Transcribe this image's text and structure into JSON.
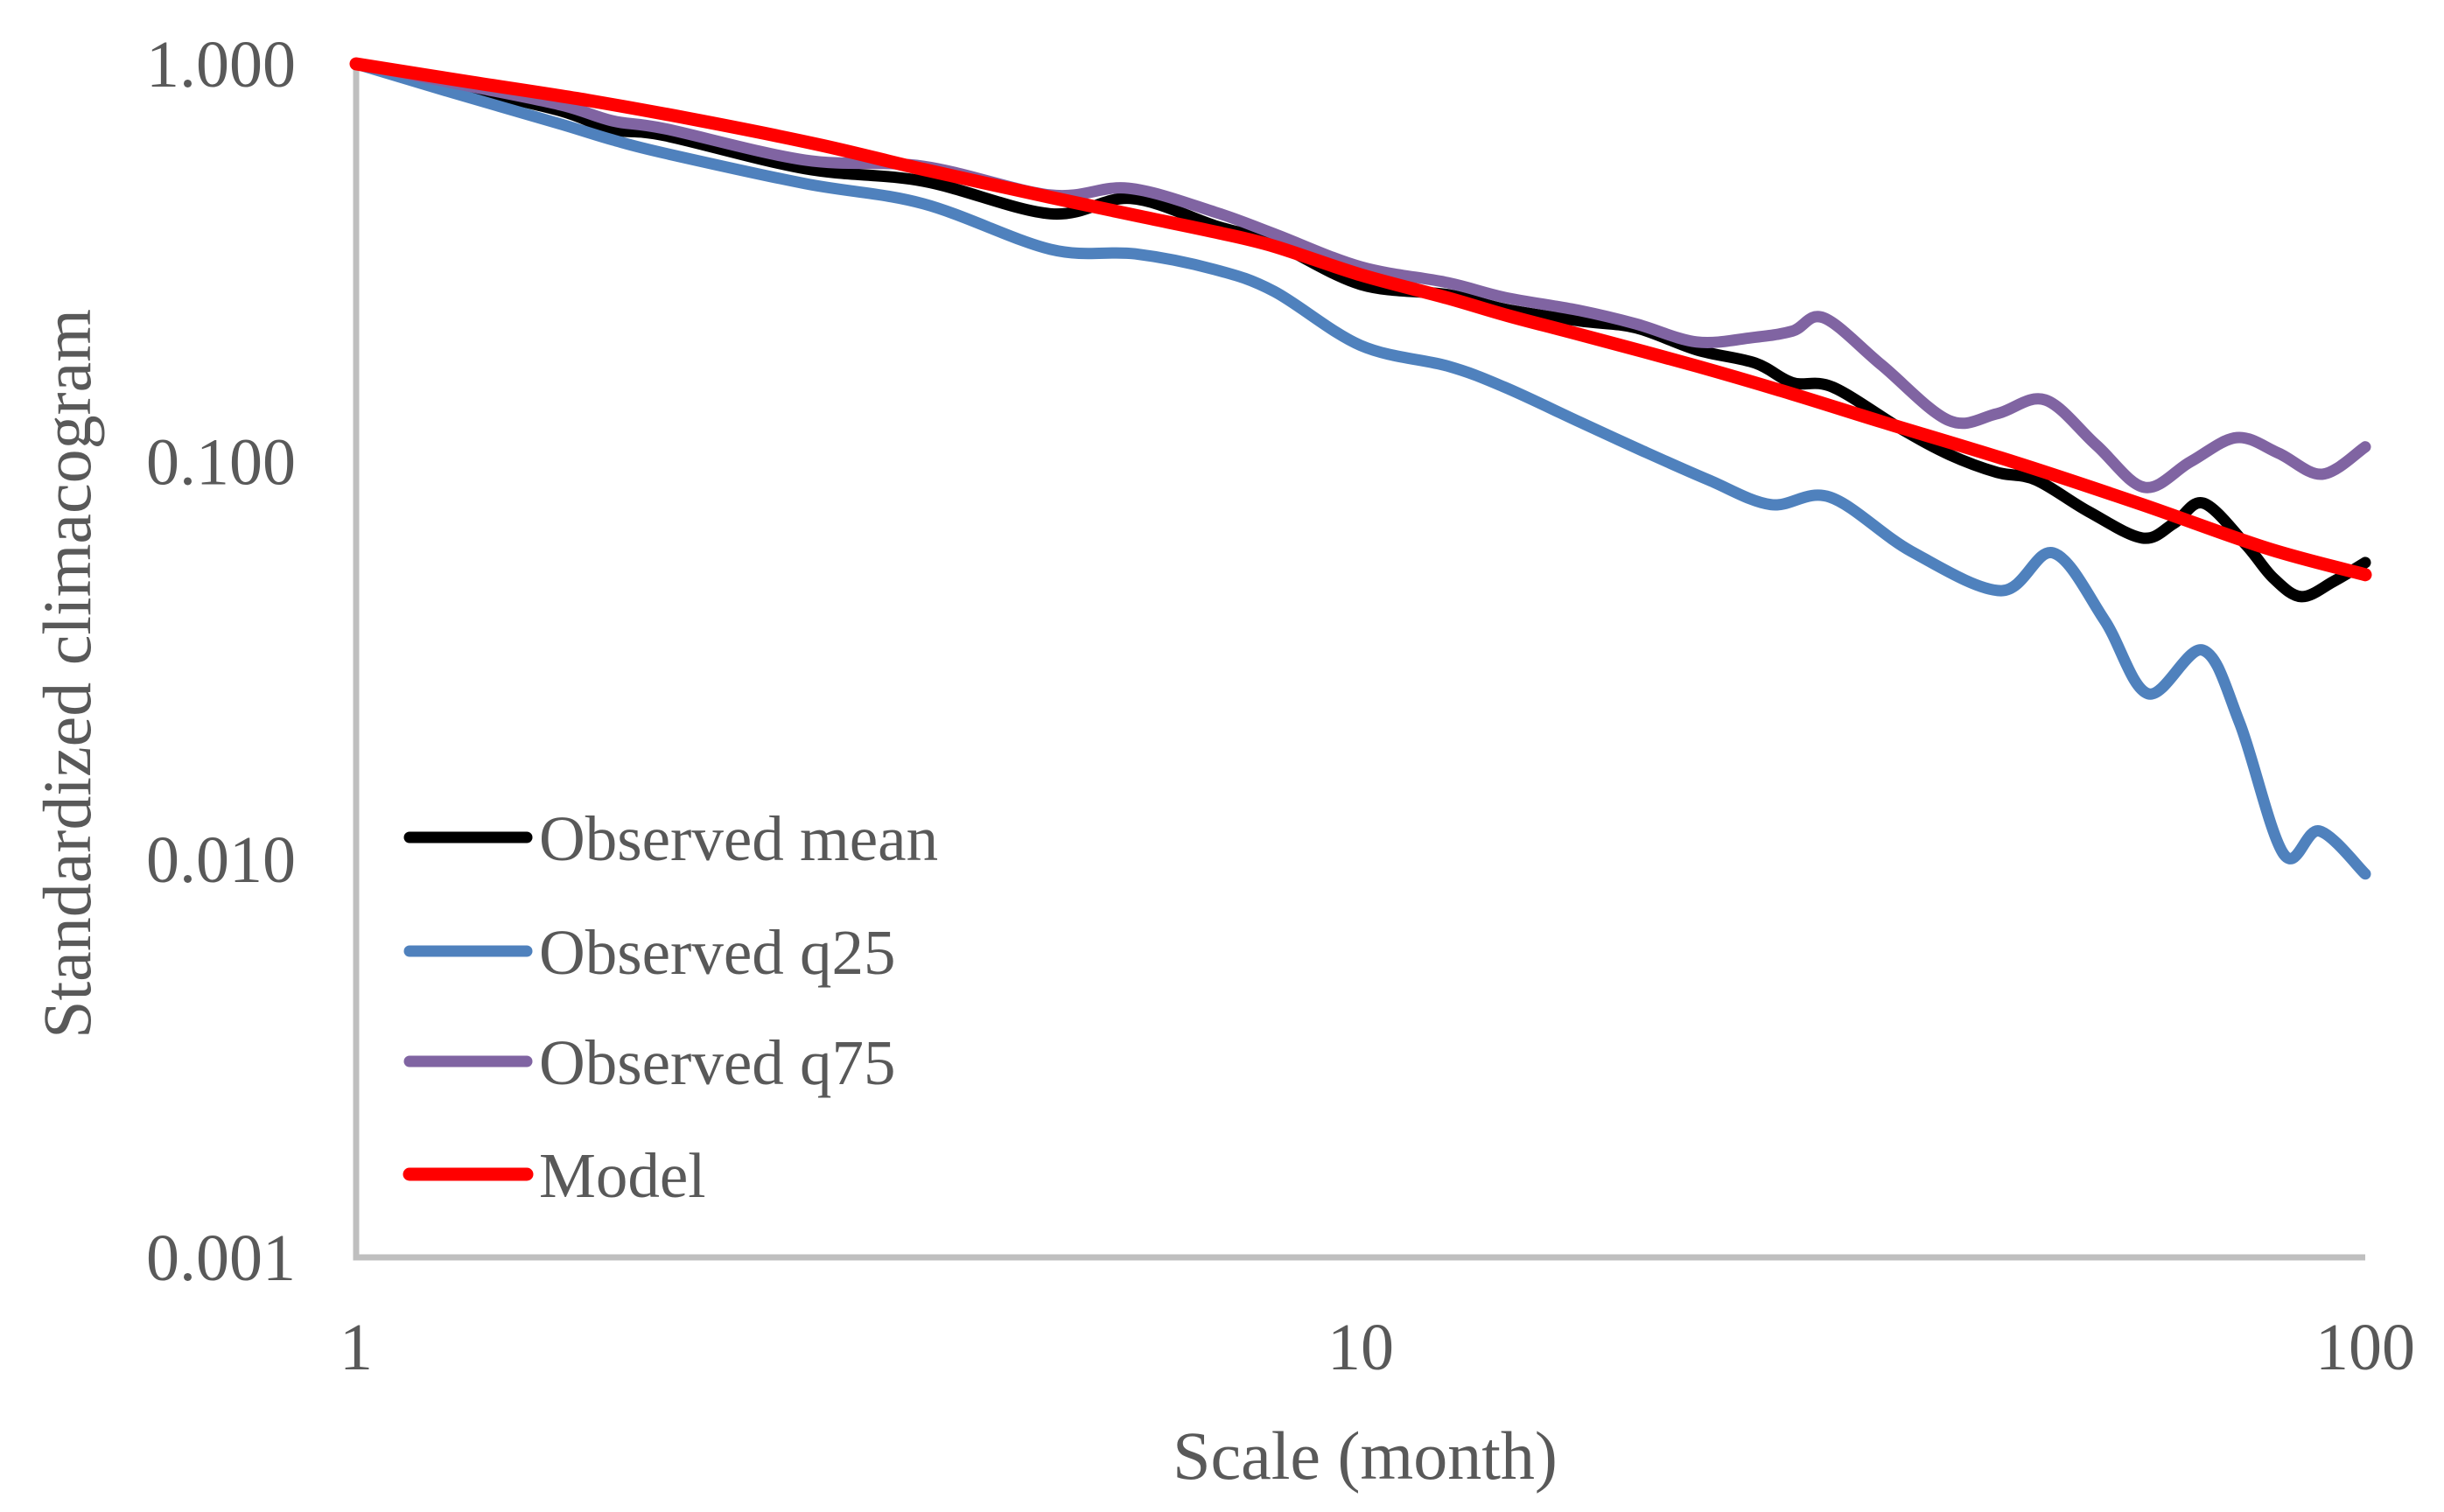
{
  "chart_data": {
    "type": "line",
    "title": "",
    "xlabel": "Scale (month)",
    "ylabel": "Standardized climacogram",
    "x_scale": "log",
    "y_scale": "log",
    "xlim": [
      1,
      100
    ],
    "ylim": [
      0.001,
      1.0
    ],
    "grid": false,
    "legend_position": "inside-lower-left",
    "x_ticks": [
      {
        "label": "1",
        "value": 1
      },
      {
        "label": "10",
        "value": 10
      },
      {
        "label": "100",
        "value": 100
      }
    ],
    "y_ticks": [
      {
        "label": "1.000",
        "value": 1.0
      },
      {
        "label": "0.100",
        "value": 0.1
      },
      {
        "label": "0.010",
        "value": 0.01
      },
      {
        "label": "0.001",
        "value": 0.001
      }
    ],
    "series": [
      {
        "id": "observed-mean",
        "name": "Observed mean",
        "color": "#000000",
        "points": [
          [
            1,
            1.0
          ],
          [
            1.3,
            0.862
          ],
          [
            1.6,
            0.761
          ],
          [
            1.8,
            0.684
          ],
          [
            2.03,
            0.66
          ],
          [
            2.8,
            0.545
          ],
          [
            3.67,
            0.507
          ],
          [
            4.91,
            0.42
          ],
          [
            5.9,
            0.459
          ],
          [
            7.16,
            0.392
          ],
          [
            8.2,
            0.354
          ],
          [
            10,
            0.279
          ],
          [
            12.2,
            0.263
          ],
          [
            13.9,
            0.242
          ],
          [
            16.5,
            0.226
          ],
          [
            18.8,
            0.217
          ],
          [
            21.6,
            0.191
          ],
          [
            24.7,
            0.177
          ],
          [
            26.9,
            0.158
          ],
          [
            29.5,
            0.154
          ],
          [
            34.5,
            0.121
          ],
          [
            38.6,
            0.104
          ],
          [
            43,
            0.094
          ],
          [
            47,
            0.09
          ],
          [
            53,
            0.075
          ],
          [
            60,
            0.0643
          ],
          [
            64.5,
            0.07
          ],
          [
            69,
            0.0787
          ],
          [
            76,
            0.062
          ],
          [
            81,
            0.051
          ],
          [
            86.4,
            0.0458
          ],
          [
            93,
            0.05
          ],
          [
            100,
            0.0558
          ]
        ]
      },
      {
        "id": "observed-q25",
        "name": "Observed q25",
        "color": "#4F81BD",
        "points": [
          [
            1,
            1.0
          ],
          [
            1.25,
            0.845
          ],
          [
            1.6,
            0.705
          ],
          [
            1.8,
            0.644
          ],
          [
            2.03,
            0.596
          ],
          [
            2.8,
            0.5
          ],
          [
            3.67,
            0.445
          ],
          [
            4.91,
            0.342
          ],
          [
            5.96,
            0.333
          ],
          [
            7.16,
            0.304
          ],
          [
            8.2,
            0.268
          ],
          [
            10,
            0.196
          ],
          [
            12.2,
            0.174
          ],
          [
            13.9,
            0.154
          ],
          [
            16.5,
            0.126
          ],
          [
            19,
            0.107
          ],
          [
            22.2,
            0.09
          ],
          [
            25.6,
            0.078
          ],
          [
            29.3,
            0.0815
          ],
          [
            35.3,
            0.0596
          ],
          [
            43.4,
            0.0474
          ],
          [
            48.9,
            0.059
          ],
          [
            55,
            0.04
          ],
          [
            60.8,
            0.0261
          ],
          [
            68.9,
            0.0336
          ],
          [
            75,
            0.022
          ],
          [
            83,
            0.0103
          ],
          [
            90,
            0.0118
          ],
          [
            100,
            0.0092
          ]
        ]
      },
      {
        "id": "observed-q75",
        "name": "Observed q75",
        "color": "#8064A2",
        "points": [
          [
            1,
            1.0
          ],
          [
            1.3,
            0.878
          ],
          [
            1.6,
            0.788
          ],
          [
            1.8,
            0.719
          ],
          [
            2.03,
            0.687
          ],
          [
            2.8,
            0.573
          ],
          [
            3.67,
            0.553
          ],
          [
            4.91,
            0.468
          ],
          [
            5.87,
            0.487
          ],
          [
            7.16,
            0.424
          ],
          [
            8.2,
            0.374
          ],
          [
            10,
            0.309
          ],
          [
            12.2,
            0.282
          ],
          [
            13.9,
            0.259
          ],
          [
            16.5,
            0.24
          ],
          [
            18.8,
            0.222
          ],
          [
            21.6,
            0.2
          ],
          [
            24.5,
            0.205
          ],
          [
            26.9,
            0.213
          ],
          [
            28.9,
            0.23
          ],
          [
            33,
            0.175
          ],
          [
            38.5,
            0.127
          ],
          [
            43,
            0.132
          ],
          [
            48,
            0.143
          ],
          [
            54,
            0.11
          ],
          [
            60.3,
            0.0862
          ],
          [
            67,
            0.1
          ],
          [
            74.5,
            0.115
          ],
          [
            82,
            0.105
          ],
          [
            90.6,
            0.093
          ],
          [
            100,
            0.109
          ]
        ]
      },
      {
        "id": "model",
        "name": "Model",
        "color": "#FF0000",
        "points": [
          [
            1,
            1.0
          ],
          [
            1.3,
            0.9
          ],
          [
            1.7,
            0.81
          ],
          [
            2.2,
            0.72
          ],
          [
            2.9,
            0.625
          ],
          [
            3.67,
            0.543
          ],
          [
            4.91,
            0.462
          ],
          [
            6,
            0.415
          ],
          [
            7.16,
            0.378
          ],
          [
            8.2,
            0.348
          ],
          [
            10,
            0.295
          ],
          [
            12.2,
            0.258
          ],
          [
            14,
            0.233
          ],
          [
            16.5,
            0.209
          ],
          [
            21.6,
            0.174
          ],
          [
            26.9,
            0.148
          ],
          [
            33,
            0.126
          ],
          [
            44.6,
            0.1
          ],
          [
            60,
            0.078
          ],
          [
            80,
            0.0605
          ],
          [
            100,
            0.052
          ]
        ]
      }
    ]
  },
  "colors": {
    "text": "#595959",
    "axis": "#BFBFBF",
    "background": "#FFFFFF"
  }
}
